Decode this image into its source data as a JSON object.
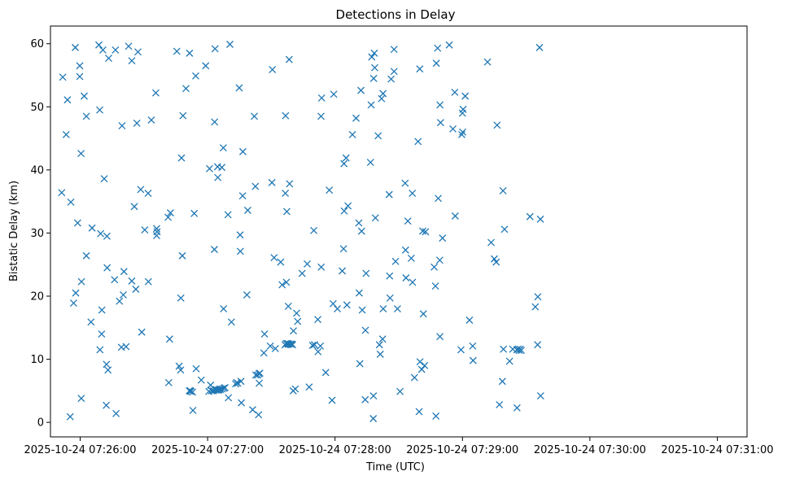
{
  "chart_data": {
    "type": "scatter",
    "title": "Detections in Delay",
    "xlabel": "Time (UTC)",
    "ylabel": "Bistatic Delay (km)",
    "marker": "x",
    "color": "#1f77b4",
    "xlim_seconds": [
      -14,
      314
    ],
    "ylim": [
      -2.3,
      62.8
    ],
    "x_ticks": [
      {
        "t": 0,
        "label": "2025-10-24 07:26:00"
      },
      {
        "t": 60,
        "label": "2025-10-24 07:27:00"
      },
      {
        "t": 120,
        "label": "2025-10-24 07:28:00"
      },
      {
        "t": 180,
        "label": "2025-10-24 07:29:00"
      },
      {
        "t": 240,
        "label": "2025-10-24 07:30:00"
      },
      {
        "t": 300,
        "label": "2025-10-24 07:31:00"
      }
    ],
    "y_ticks": [
      0,
      10,
      20,
      30,
      40,
      50,
      60
    ],
    "x_unit_note": "x values are seconds after 2025-10-24 07:26:00 UTC",
    "points": [
      [
        -8.7,
        36.4
      ],
      [
        -8.2,
        54.7
      ],
      [
        -6.6,
        45.6
      ],
      [
        -6.0,
        51.1
      ],
      [
        -4.7,
        0.9
      ],
      [
        -4.4,
        34.9
      ],
      [
        -3.1,
        18.9
      ],
      [
        -2.3,
        59.4
      ],
      [
        -2.1,
        20.5
      ],
      [
        -1.2,
        31.6
      ],
      [
        -0.2,
        56.5
      ],
      [
        -0.2,
        54.8
      ],
      [
        0.4,
        42.6
      ],
      [
        0.5,
        3.8
      ],
      [
        0.6,
        22.3
      ],
      [
        1.9,
        51.7
      ],
      [
        2.9,
        26.4
      ],
      [
        2.9,
        48.5
      ],
      [
        5.1,
        15.9
      ],
      [
        5.6,
        30.8
      ],
      [
        8.8,
        59.8
      ],
      [
        9.2,
        49.5
      ],
      [
        9.3,
        11.5
      ],
      [
        9.6,
        29.9
      ],
      [
        10.1,
        14.0
      ],
      [
        10.2,
        17.8
      ],
      [
        10.7,
        59.0
      ],
      [
        11.3,
        38.6
      ],
      [
        12.3,
        2.7
      ],
      [
        12.4,
        9.2
      ],
      [
        12.6,
        29.5
      ],
      [
        12.7,
        24.5
      ],
      [
        13.1,
        8.3
      ],
      [
        13.4,
        57.7
      ],
      [
        16.2,
        22.6
      ],
      [
        16.6,
        59.0
      ],
      [
        16.9,
        1.4
      ],
      [
        18.5,
        19.2
      ],
      [
        19.4,
        11.9
      ],
      [
        19.7,
        47.0
      ],
      [
        20.3,
        20.2
      ],
      [
        20.6,
        23.9
      ],
      [
        21.6,
        12.0
      ],
      [
        22.8,
        59.6
      ],
      [
        24.3,
        22.4
      ],
      [
        24.3,
        57.3
      ],
      [
        25.5,
        34.2
      ],
      [
        26.2,
        21.1
      ],
      [
        26.7,
        47.4
      ],
      [
        27.2,
        58.7
      ],
      [
        28.5,
        36.9
      ],
      [
        29.0,
        14.3
      ],
      [
        30.4,
        30.5
      ],
      [
        32.0,
        36.3
      ],
      [
        32.1,
        22.3
      ],
      [
        33.5,
        47.9
      ],
      [
        35.6,
        52.2
      ],
      [
        36.0,
        30.7
      ],
      [
        36.0,
        29.6
      ],
      [
        36.2,
        30.2
      ],
      [
        41.4,
        32.5
      ],
      [
        41.7,
        6.3
      ],
      [
        42.1,
        13.2
      ],
      [
        42.5,
        33.2
      ],
      [
        45.5,
        58.8
      ],
      [
        46.6,
        8.9
      ],
      [
        47.3,
        8.3
      ],
      [
        47.4,
        19.7
      ],
      [
        47.7,
        41.9
      ],
      [
        48.1,
        26.4
      ],
      [
        48.4,
        48.6
      ],
      [
        49.8,
        52.9
      ],
      [
        51.4,
        5.0
      ],
      [
        51.5,
        58.5
      ],
      [
        51.8,
        5.0
      ],
      [
        52.1,
        4.9
      ],
      [
        52.9,
        4.8
      ],
      [
        53.1,
        1.9
      ],
      [
        53.7,
        33.1
      ],
      [
        54.4,
        54.9
      ],
      [
        54.6,
        8.5
      ],
      [
        57.0,
        6.7
      ],
      [
        59.1,
        56.5
      ],
      [
        60.6,
        4.9
      ],
      [
        60.9,
        40.2
      ],
      [
        61.4,
        5.9
      ],
      [
        61.9,
        5.0
      ],
      [
        62.7,
        5.0
      ],
      [
        63.2,
        27.4
      ],
      [
        63.3,
        47.6
      ],
      [
        63.5,
        59.2
      ],
      [
        63.6,
        5.1
      ],
      [
        64.1,
        5.2
      ],
      [
        64.5,
        5.1
      ],
      [
        64.7,
        40.5
      ],
      [
        64.8,
        38.8
      ],
      [
        65.2,
        5.1
      ],
      [
        65.3,
        5.2
      ],
      [
        65.9,
        5.3
      ],
      [
        66.0,
        5.2
      ],
      [
        66.7,
        40.4
      ],
      [
        66.8,
        5.3
      ],
      [
        67.4,
        43.5
      ],
      [
        67.5,
        18.0
      ],
      [
        67.6,
        5.4
      ],
      [
        68.2,
        5.5
      ],
      [
        69.6,
        32.9
      ],
      [
        69.8,
        3.9
      ],
      [
        70.5,
        59.9
      ],
      [
        71.2,
        15.9
      ],
      [
        73.2,
        6.1
      ],
      [
        73.7,
        6.3
      ],
      [
        74.2,
        6.2
      ],
      [
        74.9,
        53.0
      ],
      [
        75.3,
        29.7
      ],
      [
        75.4,
        27.1
      ],
      [
        75.7,
        6.5
      ],
      [
        75.9,
        3.1
      ],
      [
        76.5,
        35.9
      ],
      [
        76.6,
        42.9
      ],
      [
        78.5,
        20.2
      ],
      [
        78.9,
        33.6
      ],
      [
        81.2,
        2.0
      ],
      [
        82.0,
        48.5
      ],
      [
        82.5,
        37.4
      ],
      [
        82.7,
        7.5
      ],
      [
        83.6,
        7.5
      ],
      [
        84.0,
        1.2
      ],
      [
        84.2,
        7.7
      ],
      [
        84.3,
        6.2
      ],
      [
        84.6,
        7.8
      ],
      [
        86.5,
        11.0
      ],
      [
        86.8,
        14.0
      ],
      [
        89.5,
        12.1
      ],
      [
        90.3,
        38.0
      ],
      [
        90.5,
        55.9
      ],
      [
        91.3,
        26.1
      ],
      [
        91.9,
        11.7
      ],
      [
        94.4,
        25.4
      ],
      [
        95.1,
        21.8
      ],
      [
        96.5,
        12.3
      ],
      [
        96.6,
        36.3
      ],
      [
        96.7,
        48.6
      ],
      [
        97.0,
        12.5
      ],
      [
        97.1,
        22.2
      ],
      [
        97.3,
        33.4
      ],
      [
        97.7,
        12.5
      ],
      [
        97.9,
        12.4
      ],
      [
        98.0,
        18.4
      ],
      [
        98.3,
        12.4
      ],
      [
        98.4,
        57.5
      ],
      [
        98.6,
        37.8
      ],
      [
        99.1,
        12.4
      ],
      [
        99.6,
        12.4
      ],
      [
        100.0,
        12.3
      ],
      [
        100.3,
        5.0
      ],
      [
        100.4,
        14.5
      ],
      [
        101.3,
        5.3
      ],
      [
        101.9,
        17.3
      ],
      [
        102.4,
        16.0
      ],
      [
        104.5,
        23.6
      ],
      [
        106.9,
        25.1
      ],
      [
        107.8,
        5.6
      ],
      [
        109.4,
        12.2
      ],
      [
        110.0,
        30.4
      ],
      [
        110.3,
        12.3
      ],
      [
        111.9,
        16.3
      ],
      [
        112.0,
        11.2
      ],
      [
        113.1,
        12.1
      ],
      [
        113.4,
        48.5
      ],
      [
        113.5,
        24.6
      ],
      [
        113.7,
        51.4
      ],
      [
        115.6,
        7.9
      ],
      [
        117.3,
        36.8
      ],
      [
        118.6,
        3.5
      ],
      [
        119.1,
        18.8
      ],
      [
        119.4,
        52.0
      ],
      [
        121.1,
        18.0
      ],
      [
        123.4,
        24.0
      ],
      [
        124.0,
        27.5
      ],
      [
        124.2,
        41.0
      ],
      [
        124.3,
        33.5
      ],
      [
        125.2,
        41.9
      ],
      [
        125.6,
        18.6
      ],
      [
        126.1,
        34.3
      ],
      [
        128.2,
        45.6
      ],
      [
        129.9,
        48.2
      ],
      [
        131.2,
        31.6
      ],
      [
        131.4,
        20.5
      ],
      [
        131.7,
        9.3
      ],
      [
        132.2,
        52.6
      ],
      [
        132.5,
        30.3
      ],
      [
        132.8,
        17.8
      ],
      [
        134.2,
        3.6
      ],
      [
        134.3,
        14.6
      ],
      [
        134.6,
        23.6
      ],
      [
        136.7,
        41.2
      ],
      [
        137.0,
        50.3
      ],
      [
        137.3,
        57.9
      ],
      [
        138.0,
        0.6
      ],
      [
        138.1,
        4.2
      ],
      [
        138.2,
        54.5
      ],
      [
        138.5,
        58.5
      ],
      [
        138.7,
        56.2
      ],
      [
        139.0,
        32.4
      ],
      [
        140.3,
        45.4
      ],
      [
        140.9,
        12.3
      ],
      [
        141.3,
        10.8
      ],
      [
        141.9,
        51.3
      ],
      [
        142.4,
        13.2
      ],
      [
        142.6,
        52.1
      ],
      [
        142.7,
        18.0
      ],
      [
        145.5,
        36.1
      ],
      [
        145.7,
        23.2
      ],
      [
        145.9,
        19.7
      ],
      [
        146.4,
        54.4
      ],
      [
        147.8,
        55.6
      ],
      [
        147.8,
        59.1
      ],
      [
        148.5,
        25.5
      ],
      [
        149.4,
        18.0
      ],
      [
        150.6,
        4.9
      ],
      [
        153.0,
        37.9
      ],
      [
        153.2,
        27.3
      ],
      [
        153.4,
        22.9
      ],
      [
        154.3,
        31.9
      ],
      [
        155.9,
        26.0
      ],
      [
        156.4,
        36.3
      ],
      [
        156.5,
        22.2
      ],
      [
        157.4,
        7.1
      ],
      [
        159.1,
        44.5
      ],
      [
        159.6,
        1.7
      ],
      [
        159.9,
        56.0
      ],
      [
        160.0,
        9.6
      ],
      [
        160.8,
        8.4
      ],
      [
        161.3,
        30.3
      ],
      [
        161.6,
        17.2
      ],
      [
        162.2,
        9.0
      ],
      [
        162.6,
        30.2
      ],
      [
        166.7,
        24.6
      ],
      [
        167.3,
        21.6
      ],
      [
        167.5,
        1.0
      ],
      [
        167.7,
        56.9
      ],
      [
        168.3,
        59.3
      ],
      [
        168.6,
        35.5
      ],
      [
        169.3,
        25.7
      ],
      [
        169.4,
        13.6
      ],
      [
        169.4,
        50.3
      ],
      [
        169.7,
        47.5
      ],
      [
        170.6,
        29.2
      ],
      [
        173.8,
        59.8
      ],
      [
        175.5,
        46.5
      ],
      [
        176.4,
        52.3
      ],
      [
        176.6,
        32.7
      ],
      [
        179.3,
        11.5
      ],
      [
        179.7,
        45.6
      ],
      [
        180.0,
        49.0
      ],
      [
        180.1,
        46.0
      ],
      [
        180.3,
        49.6
      ],
      [
        181.3,
        51.7
      ],
      [
        183.3,
        16.2
      ],
      [
        184.8,
        12.1
      ],
      [
        185.0,
        9.8
      ],
      [
        191.8,
        57.1
      ],
      [
        193.5,
        28.5
      ],
      [
        195.0,
        25.9
      ],
      [
        195.9,
        25.4
      ],
      [
        196.3,
        47.1
      ],
      [
        197.4,
        2.8
      ],
      [
        198.8,
        6.5
      ],
      [
        199.1,
        36.7
      ],
      [
        199.3,
        11.6
      ],
      [
        199.8,
        30.6
      ],
      [
        202.2,
        9.7
      ],
      [
        203.7,
        11.6
      ],
      [
        205.6,
        11.5
      ],
      [
        205.7,
        2.3
      ],
      [
        206.2,
        11.6
      ],
      [
        206.7,
        11.4
      ],
      [
        207.2,
        11.6
      ],
      [
        207.7,
        11.4
      ],
      [
        211.8,
        32.6
      ],
      [
        214.3,
        18.3
      ],
      [
        215.4,
        12.3
      ],
      [
        215.5,
        19.9
      ],
      [
        216.3,
        59.4
      ],
      [
        216.7,
        32.2
      ],
      [
        216.8,
        4.2
      ]
    ]
  }
}
